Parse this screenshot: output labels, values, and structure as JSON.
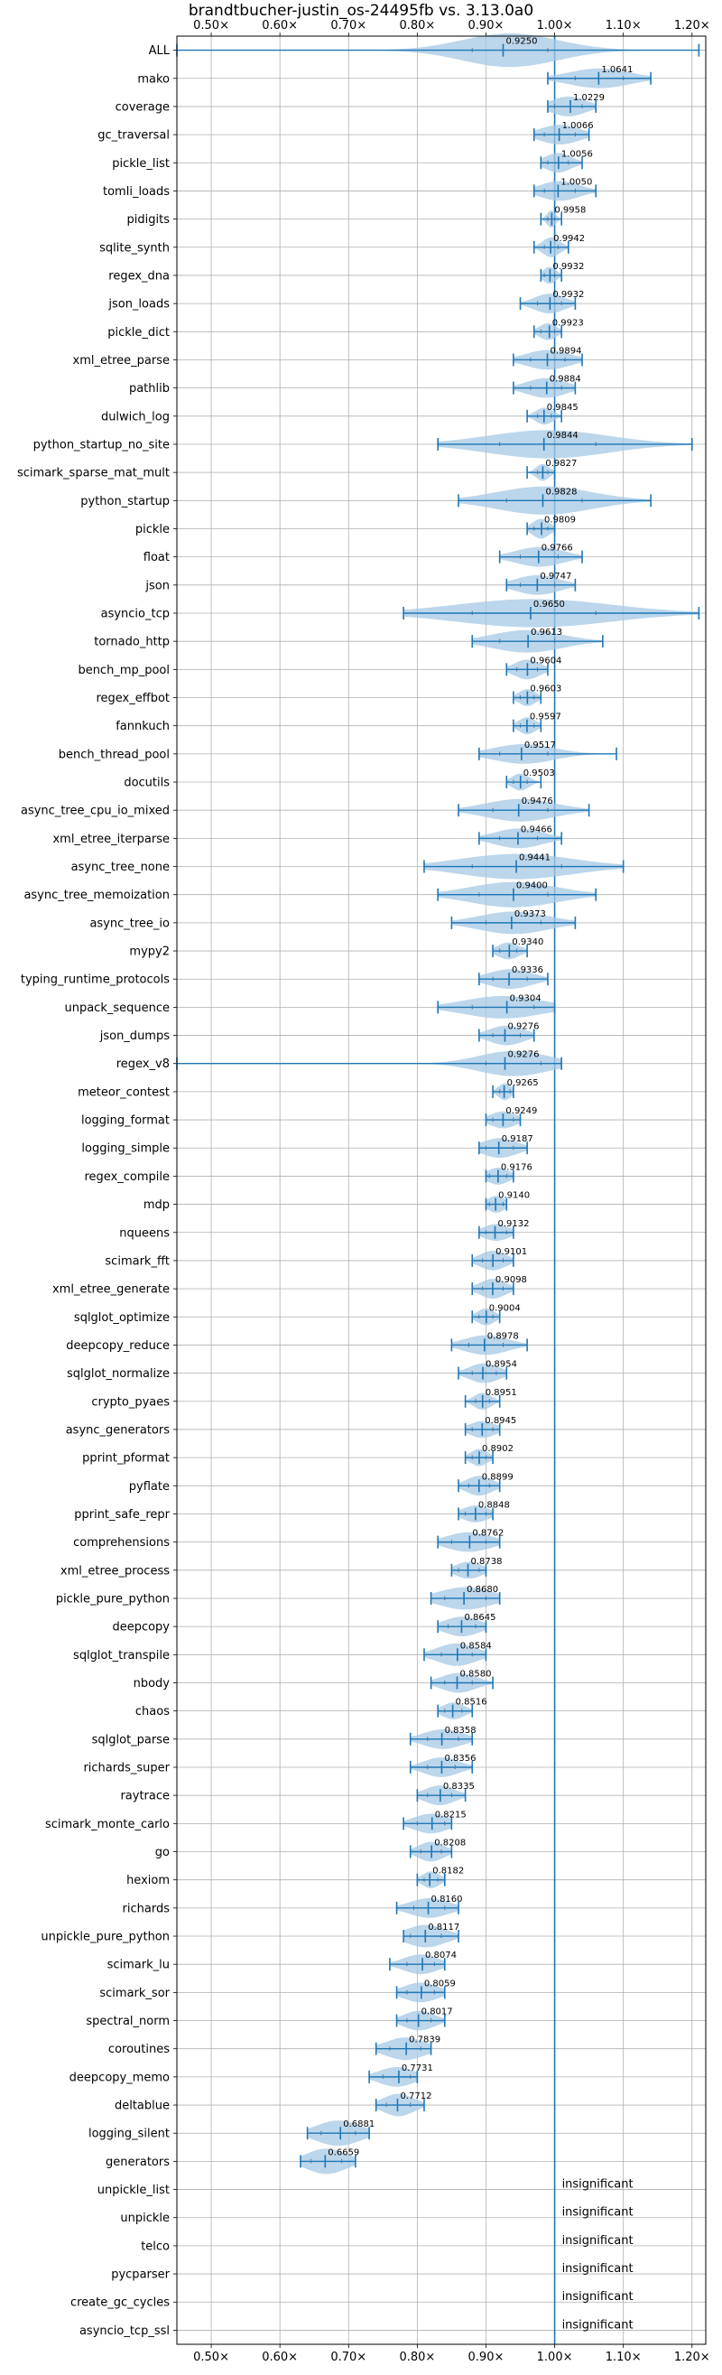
{
  "chart_data": {
    "type": "violin",
    "title": "brandtbucher-justin_os-24495fb vs. 3.13.0a0",
    "xlim": [
      0.45,
      1.22
    ],
    "xticks": [
      0.5,
      0.6,
      0.7,
      0.8,
      0.9,
      1.0,
      1.1,
      1.2
    ],
    "xtick_labels": [
      "0.50×",
      "0.60×",
      "0.70×",
      "0.80×",
      "0.90×",
      "1.00×",
      "1.10×",
      "1.20×"
    ],
    "reference_line": 1.0,
    "grid": true,
    "color_line": "#1f77b4",
    "color_fill": "#a6c8e4",
    "insignificant_label": "insignificant",
    "benchmarks": [
      {
        "name": "ALL",
        "label": "0.9250",
        "mean": 0.925,
        "min": 0.45,
        "max": 1.21,
        "q1": 0.88,
        "q3": 0.99,
        "width": 0.6
      },
      {
        "name": "mako",
        "label": "1.0641",
        "mean": 1.0641,
        "min": 0.99,
        "max": 1.14,
        "q1": 1.03,
        "q3": 1.1,
        "width": 0.35
      },
      {
        "name": "coverage",
        "label": "1.0229",
        "mean": 1.0229,
        "min": 0.99,
        "max": 1.06,
        "q1": 1.0,
        "q3": 1.04,
        "width": 0.35
      },
      {
        "name": "gc_traversal",
        "label": "1.0066",
        "mean": 1.0066,
        "min": 0.97,
        "max": 1.05,
        "q1": 0.985,
        "q3": 1.03,
        "width": 0.35
      },
      {
        "name": "pickle_list",
        "label": "1.0056",
        "mean": 1.0056,
        "min": 0.98,
        "max": 1.04,
        "q1": 0.99,
        "q3": 1.02,
        "width": 0.35
      },
      {
        "name": "tomli_loads",
        "label": "1.0050",
        "mean": 1.005,
        "min": 0.97,
        "max": 1.06,
        "q1": 0.985,
        "q3": 1.03,
        "width": 0.35
      },
      {
        "name": "pidigits",
        "label": "0.9958",
        "mean": 0.9958,
        "min": 0.98,
        "max": 1.01,
        "q1": 0.99,
        "q3": 1.0,
        "width": 0.3
      },
      {
        "name": "sqlite_synth",
        "label": "0.9942",
        "mean": 0.9942,
        "min": 0.97,
        "max": 1.02,
        "q1": 0.985,
        "q3": 1.005,
        "width": 0.35
      },
      {
        "name": "regex_dna",
        "label": "0.9932",
        "mean": 0.9932,
        "min": 0.98,
        "max": 1.01,
        "q1": 0.985,
        "q3": 1.0,
        "width": 0.3
      },
      {
        "name": "json_loads",
        "label": "0.9932",
        "mean": 0.9932,
        "min": 0.95,
        "max": 1.03,
        "q1": 0.975,
        "q3": 1.01,
        "width": 0.35
      },
      {
        "name": "pickle_dict",
        "label": "0.9923",
        "mean": 0.9923,
        "min": 0.97,
        "max": 1.01,
        "q1": 0.98,
        "q3": 1.0,
        "width": 0.3
      },
      {
        "name": "xml_etree_parse",
        "label": "0.9894",
        "mean": 0.9894,
        "min": 0.94,
        "max": 1.04,
        "q1": 0.965,
        "q3": 1.015,
        "width": 0.35
      },
      {
        "name": "pathlib",
        "label": "0.9884",
        "mean": 0.9884,
        "min": 0.94,
        "max": 1.03,
        "q1": 0.965,
        "q3": 1.01,
        "width": 0.35
      },
      {
        "name": "dulwich_log",
        "label": "0.9845",
        "mean": 0.9845,
        "min": 0.96,
        "max": 1.01,
        "q1": 0.975,
        "q3": 0.995,
        "width": 0.3
      },
      {
        "name": "python_startup_no_site",
        "label": "0.9844",
        "mean": 0.9844,
        "min": 0.83,
        "max": 1.2,
        "q1": 0.92,
        "q3": 1.06,
        "width": 0.5
      },
      {
        "name": "scimark_sparse_mat_mult",
        "label": "0.9827",
        "mean": 0.9827,
        "min": 0.96,
        "max": 1.0,
        "q1": 0.975,
        "q3": 0.99,
        "width": 0.3
      },
      {
        "name": "python_startup",
        "label": "0.9828",
        "mean": 0.9828,
        "min": 0.86,
        "max": 1.14,
        "q1": 0.93,
        "q3": 1.04,
        "width": 0.5
      },
      {
        "name": "pickle",
        "label": "0.9809",
        "mean": 0.9809,
        "min": 0.96,
        "max": 1.0,
        "q1": 0.97,
        "q3": 0.99,
        "width": 0.35
      },
      {
        "name": "float",
        "label": "0.9766",
        "mean": 0.9766,
        "min": 0.92,
        "max": 1.04,
        "q1": 0.95,
        "q3": 1.005,
        "width": 0.35
      },
      {
        "name": "json",
        "label": "0.9747",
        "mean": 0.9747,
        "min": 0.93,
        "max": 1.03,
        "q1": 0.95,
        "q3": 1.0,
        "width": 0.35
      },
      {
        "name": "asyncio_tcp",
        "label": "0.9650",
        "mean": 0.965,
        "min": 0.78,
        "max": 1.21,
        "q1": 0.88,
        "q3": 1.06,
        "width": 0.5
      },
      {
        "name": "tornado_http",
        "label": "0.9613",
        "mean": 0.9613,
        "min": 0.88,
        "max": 1.07,
        "q1": 0.92,
        "q3": 1.0,
        "width": 0.4
      },
      {
        "name": "bench_mp_pool",
        "label": "0.9604",
        "mean": 0.9604,
        "min": 0.93,
        "max": 0.99,
        "q1": 0.945,
        "q3": 0.975,
        "width": 0.35
      },
      {
        "name": "regex_effbot",
        "label": "0.9603",
        "mean": 0.9603,
        "min": 0.94,
        "max": 0.98,
        "q1": 0.95,
        "q3": 0.97,
        "width": 0.3
      },
      {
        "name": "fannkuch",
        "label": "0.9597",
        "mean": 0.9597,
        "min": 0.94,
        "max": 0.98,
        "q1": 0.95,
        "q3": 0.97,
        "width": 0.3
      },
      {
        "name": "bench_thread_pool",
        "label": "0.9517",
        "mean": 0.9517,
        "min": 0.89,
        "max": 1.09,
        "q1": 0.92,
        "q3": 0.99,
        "width": 0.35
      },
      {
        "name": "docutils",
        "label": "0.9503",
        "mean": 0.9503,
        "min": 0.93,
        "max": 0.98,
        "q1": 0.94,
        "q3": 0.96,
        "width": 0.3
      },
      {
        "name": "async_tree_cpu_io_mixed",
        "label": "0.9476",
        "mean": 0.9476,
        "min": 0.86,
        "max": 1.05,
        "q1": 0.91,
        "q3": 0.99,
        "width": 0.4
      },
      {
        "name": "xml_etree_iterparse",
        "label": "0.9466",
        "mean": 0.9466,
        "min": 0.89,
        "max": 1.01,
        "q1": 0.92,
        "q3": 0.975,
        "width": 0.35
      },
      {
        "name": "async_tree_none",
        "label": "0.9441",
        "mean": 0.9441,
        "min": 0.81,
        "max": 1.1,
        "q1": 0.88,
        "q3": 1.01,
        "width": 0.45
      },
      {
        "name": "async_tree_memoization",
        "label": "0.9400",
        "mean": 0.94,
        "min": 0.83,
        "max": 1.06,
        "q1": 0.89,
        "q3": 0.99,
        "width": 0.45
      },
      {
        "name": "async_tree_io",
        "label": "0.9373",
        "mean": 0.9373,
        "min": 0.85,
        "max": 1.03,
        "q1": 0.9,
        "q3": 0.98,
        "width": 0.4
      },
      {
        "name": "mypy2",
        "label": "0.9340",
        "mean": 0.934,
        "min": 0.91,
        "max": 0.96,
        "q1": 0.92,
        "q3": 0.945,
        "width": 0.3
      },
      {
        "name": "typing_runtime_protocols",
        "label": "0.9336",
        "mean": 0.9336,
        "min": 0.89,
        "max": 0.99,
        "q1": 0.91,
        "q3": 0.96,
        "width": 0.35
      },
      {
        "name": "unpack_sequence",
        "label": "0.9304",
        "mean": 0.9304,
        "min": 0.83,
        "max": 1.0,
        "q1": 0.88,
        "q3": 0.97,
        "width": 0.4
      },
      {
        "name": "json_dumps",
        "label": "0.9276",
        "mean": 0.9276,
        "min": 0.89,
        "max": 0.97,
        "q1": 0.91,
        "q3": 0.95,
        "width": 0.35
      },
      {
        "name": "regex_v8",
        "label": "0.9276",
        "mean": 0.9276,
        "min": 0.45,
        "max": 1.01,
        "q1": 0.9,
        "q3": 0.98,
        "width": 0.45
      },
      {
        "name": "meteor_contest",
        "label": "0.9265",
        "mean": 0.9265,
        "min": 0.91,
        "max": 0.94,
        "q1": 0.92,
        "q3": 0.935,
        "width": 0.3
      },
      {
        "name": "logging_format",
        "label": "0.9249",
        "mean": 0.9249,
        "min": 0.9,
        "max": 0.95,
        "q1": 0.91,
        "q3": 0.94,
        "width": 0.3
      },
      {
        "name": "logging_simple",
        "label": "0.9187",
        "mean": 0.9187,
        "min": 0.89,
        "max": 0.96,
        "q1": 0.9,
        "q3": 0.94,
        "width": 0.35
      },
      {
        "name": "regex_compile",
        "label": "0.9176",
        "mean": 0.9176,
        "min": 0.9,
        "max": 0.94,
        "q1": 0.905,
        "q3": 0.93,
        "width": 0.3
      },
      {
        "name": "mdp",
        "label": "0.9140",
        "mean": 0.914,
        "min": 0.9,
        "max": 0.93,
        "q1": 0.905,
        "q3": 0.925,
        "width": 0.3
      },
      {
        "name": "nqueens",
        "label": "0.9132",
        "mean": 0.9132,
        "min": 0.89,
        "max": 0.94,
        "q1": 0.9,
        "q3": 0.93,
        "width": 0.3
      },
      {
        "name": "scimark_fft",
        "label": "0.9101",
        "mean": 0.9101,
        "min": 0.88,
        "max": 0.94,
        "q1": 0.895,
        "q3": 0.925,
        "width": 0.35
      },
      {
        "name": "xml_etree_generate",
        "label": "0.9098",
        "mean": 0.9098,
        "min": 0.88,
        "max": 0.94,
        "q1": 0.895,
        "q3": 0.925,
        "width": 0.35
      },
      {
        "name": "sqlglot_optimize",
        "label": "0.9004",
        "mean": 0.9004,
        "min": 0.88,
        "max": 0.92,
        "q1": 0.89,
        "q3": 0.91,
        "width": 0.3
      },
      {
        "name": "deepcopy_reduce",
        "label": "0.8978",
        "mean": 0.8978,
        "min": 0.85,
        "max": 0.96,
        "q1": 0.875,
        "q3": 0.925,
        "width": 0.35
      },
      {
        "name": "sqlglot_normalize",
        "label": "0.8954",
        "mean": 0.8954,
        "min": 0.86,
        "max": 0.93,
        "q1": 0.88,
        "q3": 0.915,
        "width": 0.35
      },
      {
        "name": "crypto_pyaes",
        "label": "0.8951",
        "mean": 0.8951,
        "min": 0.87,
        "max": 0.92,
        "q1": 0.885,
        "q3": 0.905,
        "width": 0.3
      },
      {
        "name": "async_generators",
        "label": "0.8945",
        "mean": 0.8945,
        "min": 0.87,
        "max": 0.92,
        "q1": 0.88,
        "q3": 0.91,
        "width": 0.3
      },
      {
        "name": "pprint_pformat",
        "label": "0.8902",
        "mean": 0.8902,
        "min": 0.87,
        "max": 0.91,
        "q1": 0.88,
        "q3": 0.9,
        "width": 0.3
      },
      {
        "name": "pyflate",
        "label": "0.8899",
        "mean": 0.8899,
        "min": 0.86,
        "max": 0.92,
        "q1": 0.875,
        "q3": 0.905,
        "width": 0.35
      },
      {
        "name": "pprint_safe_repr",
        "label": "0.8848",
        "mean": 0.8848,
        "min": 0.86,
        "max": 0.91,
        "q1": 0.87,
        "q3": 0.9,
        "width": 0.3
      },
      {
        "name": "comprehensions",
        "label": "0.8762",
        "mean": 0.8762,
        "min": 0.83,
        "max": 0.92,
        "q1": 0.85,
        "q3": 0.9,
        "width": 0.35
      },
      {
        "name": "xml_etree_process",
        "label": "0.8738",
        "mean": 0.8738,
        "min": 0.85,
        "max": 0.9,
        "q1": 0.86,
        "q3": 0.89,
        "width": 0.3
      },
      {
        "name": "pickle_pure_python",
        "label": "0.8680",
        "mean": 0.868,
        "min": 0.82,
        "max": 0.92,
        "q1": 0.84,
        "q3": 0.9,
        "width": 0.4
      },
      {
        "name": "deepcopy",
        "label": "0.8645",
        "mean": 0.8645,
        "min": 0.83,
        "max": 0.9,
        "q1": 0.845,
        "q3": 0.885,
        "width": 0.35
      },
      {
        "name": "sqlglot_transpile",
        "label": "0.8584",
        "mean": 0.8584,
        "min": 0.81,
        "max": 0.9,
        "q1": 0.835,
        "q3": 0.88,
        "width": 0.4
      },
      {
        "name": "nbody",
        "label": "0.8580",
        "mean": 0.858,
        "min": 0.82,
        "max": 0.91,
        "q1": 0.84,
        "q3": 0.88,
        "width": 0.35
      },
      {
        "name": "chaos",
        "label": "0.8516",
        "mean": 0.8516,
        "min": 0.83,
        "max": 0.88,
        "q1": 0.84,
        "q3": 0.865,
        "width": 0.3
      },
      {
        "name": "sqlglot_parse",
        "label": "0.8358",
        "mean": 0.8358,
        "min": 0.79,
        "max": 0.88,
        "q1": 0.815,
        "q3": 0.86,
        "width": 0.35
      },
      {
        "name": "richards_super",
        "label": "0.8356",
        "mean": 0.8356,
        "min": 0.79,
        "max": 0.88,
        "q1": 0.815,
        "q3": 0.855,
        "width": 0.35
      },
      {
        "name": "raytrace",
        "label": "0.8335",
        "mean": 0.8335,
        "min": 0.8,
        "max": 0.87,
        "q1": 0.815,
        "q3": 0.85,
        "width": 0.35
      },
      {
        "name": "scimark_monte_carlo",
        "label": "0.8215",
        "mean": 0.8215,
        "min": 0.78,
        "max": 0.85,
        "q1": 0.8,
        "q3": 0.84,
        "width": 0.35
      },
      {
        "name": "go",
        "label": "0.8208",
        "mean": 0.8208,
        "min": 0.79,
        "max": 0.85,
        "q1": 0.805,
        "q3": 0.835,
        "width": 0.35
      },
      {
        "name": "hexiom",
        "label": "0.8182",
        "mean": 0.8182,
        "min": 0.8,
        "max": 0.84,
        "q1": 0.81,
        "q3": 0.83,
        "width": 0.3
      },
      {
        "name": "richards",
        "label": "0.8160",
        "mean": 0.816,
        "min": 0.77,
        "max": 0.86,
        "q1": 0.795,
        "q3": 0.84,
        "width": 0.35
      },
      {
        "name": "unpickle_pure_python",
        "label": "0.8117",
        "mean": 0.8117,
        "min": 0.78,
        "max": 0.86,
        "q1": 0.79,
        "q3": 0.835,
        "width": 0.4
      },
      {
        "name": "scimark_lu",
        "label": "0.8074",
        "mean": 0.8074,
        "min": 0.76,
        "max": 0.84,
        "q1": 0.785,
        "q3": 0.825,
        "width": 0.35
      },
      {
        "name": "scimark_sor",
        "label": "0.8059",
        "mean": 0.8059,
        "min": 0.77,
        "max": 0.84,
        "q1": 0.785,
        "q3": 0.825,
        "width": 0.35
      },
      {
        "name": "spectral_norm",
        "label": "0.8017",
        "mean": 0.8017,
        "min": 0.77,
        "max": 0.84,
        "q1": 0.785,
        "q3": 0.82,
        "width": 0.35
      },
      {
        "name": "coroutines",
        "label": "0.7839",
        "mean": 0.7839,
        "min": 0.74,
        "max": 0.82,
        "q1": 0.76,
        "q3": 0.805,
        "width": 0.4
      },
      {
        "name": "deepcopy_memo",
        "label": "0.7731",
        "mean": 0.7731,
        "min": 0.73,
        "max": 0.8,
        "q1": 0.75,
        "q3": 0.79,
        "width": 0.35
      },
      {
        "name": "deltablue",
        "label": "0.7712",
        "mean": 0.7712,
        "min": 0.74,
        "max": 0.81,
        "q1": 0.755,
        "q3": 0.79,
        "width": 0.4
      },
      {
        "name": "logging_silent",
        "label": "0.6881",
        "mean": 0.6881,
        "min": 0.64,
        "max": 0.73,
        "q1": 0.66,
        "q3": 0.71,
        "width": 0.45
      },
      {
        "name": "generators",
        "label": "0.6659",
        "mean": 0.6659,
        "min": 0.63,
        "max": 0.71,
        "q1": 0.645,
        "q3": 0.69,
        "width": 0.45
      },
      {
        "name": "unpickle_list",
        "insignificant": true
      },
      {
        "name": "unpickle",
        "insignificant": true
      },
      {
        "name": "telco",
        "insignificant": true
      },
      {
        "name": "pycparser",
        "insignificant": true
      },
      {
        "name": "create_gc_cycles",
        "insignificant": true
      },
      {
        "name": "asyncio_tcp_ssl",
        "insignificant": true
      }
    ]
  }
}
